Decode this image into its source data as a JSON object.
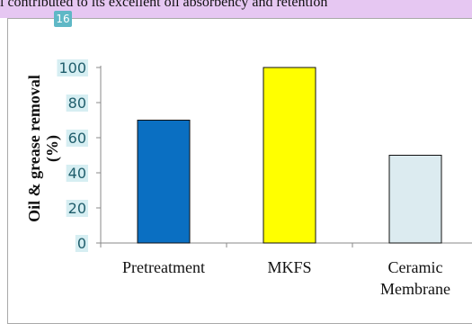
{
  "header_text": "l contributed to its excellent oil absorbency and retention",
  "page_badge": "16",
  "chart_data": {
    "type": "bar",
    "ylabel_lines": [
      "Oil & grease removal",
      "(%)"
    ],
    "categories": [
      {
        "lines": [
          "Pretreatment"
        ]
      },
      {
        "lines": [
          "MKFS"
        ]
      },
      {
        "lines": [
          "Ceramic",
          "Membrane"
        ]
      }
    ],
    "values": [
      70,
      100,
      50
    ],
    "colors": [
      "#0a6fc2",
      "#ffff00",
      "#dcebf0"
    ],
    "ylim": [
      0,
      100
    ],
    "yticks": [
      0,
      20,
      40,
      60,
      80,
      100
    ],
    "grid": false
  }
}
